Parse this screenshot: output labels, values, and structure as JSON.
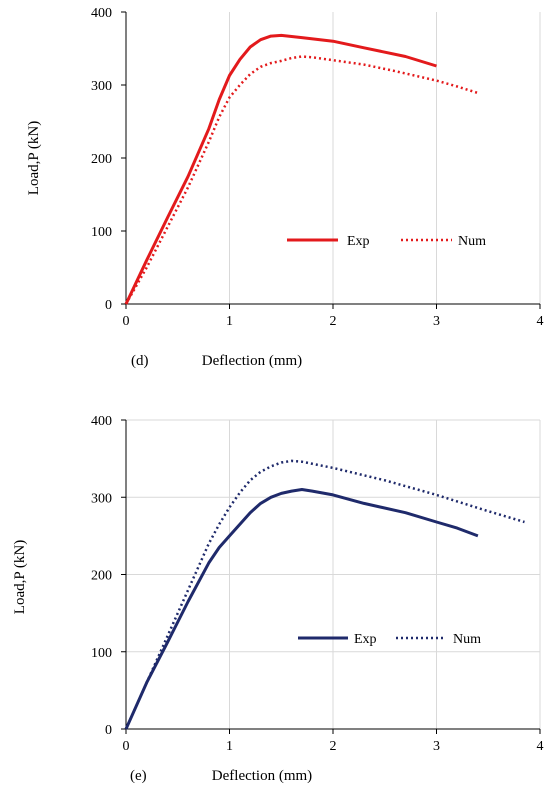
{
  "chart_data": [
    {
      "type": "line",
      "panel_label": "(d)",
      "xlabel": "Deflection (mm)",
      "ylabel": "Load,P (kN)",
      "xlim": [
        0,
        4
      ],
      "ylim": [
        0,
        400
      ],
      "xticks": [
        0,
        1,
        2,
        3,
        4
      ],
      "yticks": [
        0,
        100,
        200,
        300,
        400
      ],
      "grid": {
        "vertical": true,
        "horizontal": false
      },
      "legend_position": "bottom-right",
      "series": [
        {
          "name": "Exp",
          "color": "#e31a1c",
          "style": "solid",
          "points": [
            [
              0,
              0
            ],
            [
              0.2,
              60
            ],
            [
              0.4,
              118
            ],
            [
              0.6,
              175
            ],
            [
              0.8,
              240
            ],
            [
              0.9,
              280
            ],
            [
              1.0,
              313
            ],
            [
              1.1,
              335
            ],
            [
              1.2,
              352
            ],
            [
              1.3,
              362
            ],
            [
              1.4,
              367
            ],
            [
              1.5,
              368
            ],
            [
              1.7,
              365
            ],
            [
              2.0,
              360
            ],
            [
              2.3,
              351
            ],
            [
              2.7,
              339
            ],
            [
              3.0,
              326
            ]
          ]
        },
        {
          "name": "Num",
          "color": "#e31a1c",
          "style": "dotted",
          "points": [
            [
              0,
              0
            ],
            [
              0.2,
              50
            ],
            [
              0.4,
              105
            ],
            [
              0.6,
              160
            ],
            [
              0.8,
              222
            ],
            [
              0.9,
              256
            ],
            [
              1.0,
              283
            ],
            [
              1.1,
              300
            ],
            [
              1.2,
              315
            ],
            [
              1.3,
              325
            ],
            [
              1.4,
              330
            ],
            [
              1.5,
              333
            ],
            [
              1.6,
              337
            ],
            [
              1.7,
              339
            ],
            [
              1.8,
              338
            ],
            [
              2.0,
              334
            ],
            [
              2.3,
              328
            ],
            [
              2.6,
              319
            ],
            [
              3.0,
              306
            ],
            [
              3.2,
              298
            ],
            [
              3.4,
              289
            ]
          ]
        }
      ]
    },
    {
      "type": "line",
      "panel_label": "(e)",
      "xlabel": "Deflection (mm)",
      "ylabel": "Load,P (kN)",
      "xlim": [
        0,
        4
      ],
      "ylim": [
        0,
        400
      ],
      "xticks": [
        0,
        1,
        2,
        3,
        4
      ],
      "yticks": [
        0,
        100,
        200,
        300,
        400
      ],
      "grid": {
        "vertical": true,
        "horizontal": true
      },
      "legend_position": "bottom-right",
      "series": [
        {
          "name": "Exp",
          "color": "#1f2a6b",
          "style": "solid",
          "points": [
            [
              0,
              0
            ],
            [
              0.2,
              60
            ],
            [
              0.4,
              112
            ],
            [
              0.6,
              165
            ],
            [
              0.8,
              215
            ],
            [
              0.9,
              235
            ],
            [
              1.0,
              250
            ],
            [
              1.1,
              265
            ],
            [
              1.2,
              280
            ],
            [
              1.3,
              292
            ],
            [
              1.4,
              300
            ],
            [
              1.5,
              305
            ],
            [
              1.6,
              308
            ],
            [
              1.7,
              310
            ],
            [
              1.8,
              308
            ],
            [
              2.0,
              303
            ],
            [
              2.3,
              292
            ],
            [
              2.7,
              280
            ],
            [
              3.0,
              268
            ],
            [
              3.2,
              260
            ],
            [
              3.4,
              250
            ]
          ]
        },
        {
          "name": "Num",
          "color": "#1f2a6b",
          "style": "dotted",
          "points": [
            [
              0,
              0
            ],
            [
              0.2,
              60
            ],
            [
              0.4,
              120
            ],
            [
              0.6,
              180
            ],
            [
              0.8,
              240
            ],
            [
              0.9,
              265
            ],
            [
              1.0,
              287
            ],
            [
              1.1,
              306
            ],
            [
              1.2,
              322
            ],
            [
              1.3,
              333
            ],
            [
              1.4,
              340
            ],
            [
              1.5,
              345
            ],
            [
              1.6,
              347
            ],
            [
              1.7,
              346
            ],
            [
              2.0,
              338
            ],
            [
              2.5,
              322
            ],
            [
              3.0,
              303
            ],
            [
              3.5,
              282
            ],
            [
              3.85,
              268
            ]
          ]
        }
      ]
    }
  ]
}
